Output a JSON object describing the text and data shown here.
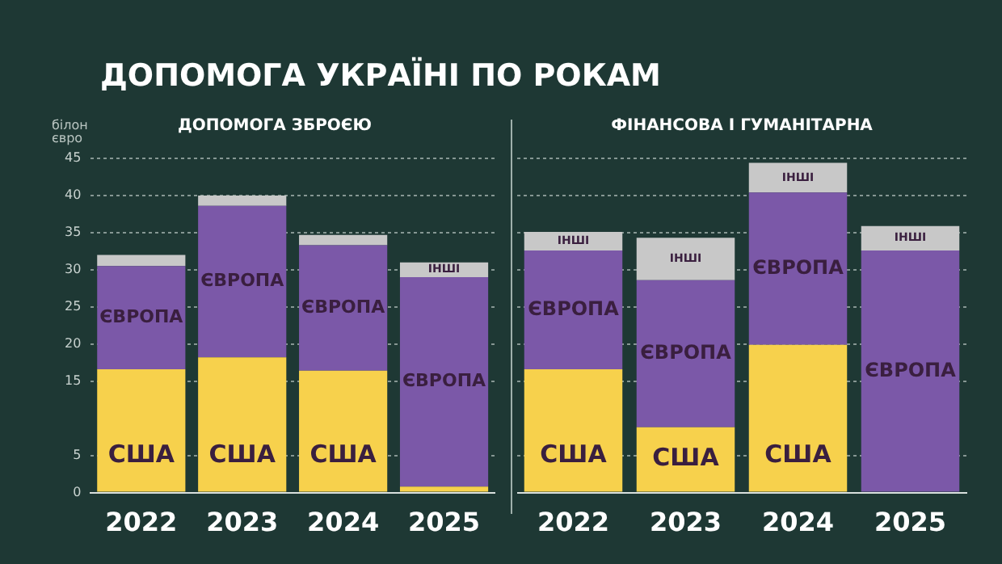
{
  "chart_data": [
    {
      "type": "bar",
      "title": "ДОПОМОГА УКРАЇНІ ПО РОКАМ",
      "subtitle": "ДОПОМОГА ЗБРОЄЮ",
      "ylabel": "білон євро",
      "categories": [
        "2022",
        "2023",
        "2024",
        "2025"
      ],
      "stacked": true,
      "grid": "y",
      "legend": false,
      "ylim": [
        0,
        45
      ],
      "yticks": [
        0,
        5,
        15,
        20,
        25,
        30,
        35,
        40,
        45
      ],
      "series": [
        {
          "name": "США",
          "color": "#f7d14c",
          "values": [
            16.6,
            18.2,
            16.4,
            0.8
          ]
        },
        {
          "name": "ЄВРОПА",
          "color": "#7b58a8",
          "values": [
            13.9,
            20.4,
            16.9,
            28.2
          ]
        },
        {
          "name": "ІНШІ",
          "color": "#c8c8c8",
          "values": [
            1.5,
            1.4,
            1.4,
            2.0
          ]
        }
      ]
    },
    {
      "type": "bar",
      "subtitle": "ФІНАНСОВА І ГУМАНІТАРНА",
      "categories": [
        "2022",
        "2023",
        "2024",
        "2025"
      ],
      "stacked": true,
      "grid": "y",
      "legend": false,
      "tick_labels": "x",
      "ylim": [
        0,
        45
      ],
      "yticks": [
        0,
        5,
        15,
        20,
        25,
        30,
        35,
        40,
        45
      ],
      "series": [
        {
          "name": "США",
          "color": "#f7d14c",
          "values": [
            16.6,
            8.8,
            19.9,
            0
          ]
        },
        {
          "name": "ЄВРОПА",
          "color": "#7b58a8",
          "values": [
            16.0,
            19.8,
            20.5,
            32.6
          ]
        },
        {
          "name": "ІНШІ",
          "color": "#c8c8c8",
          "values": [
            2.5,
            5.7,
            4.0,
            3.3
          ]
        }
      ]
    }
  ]
}
